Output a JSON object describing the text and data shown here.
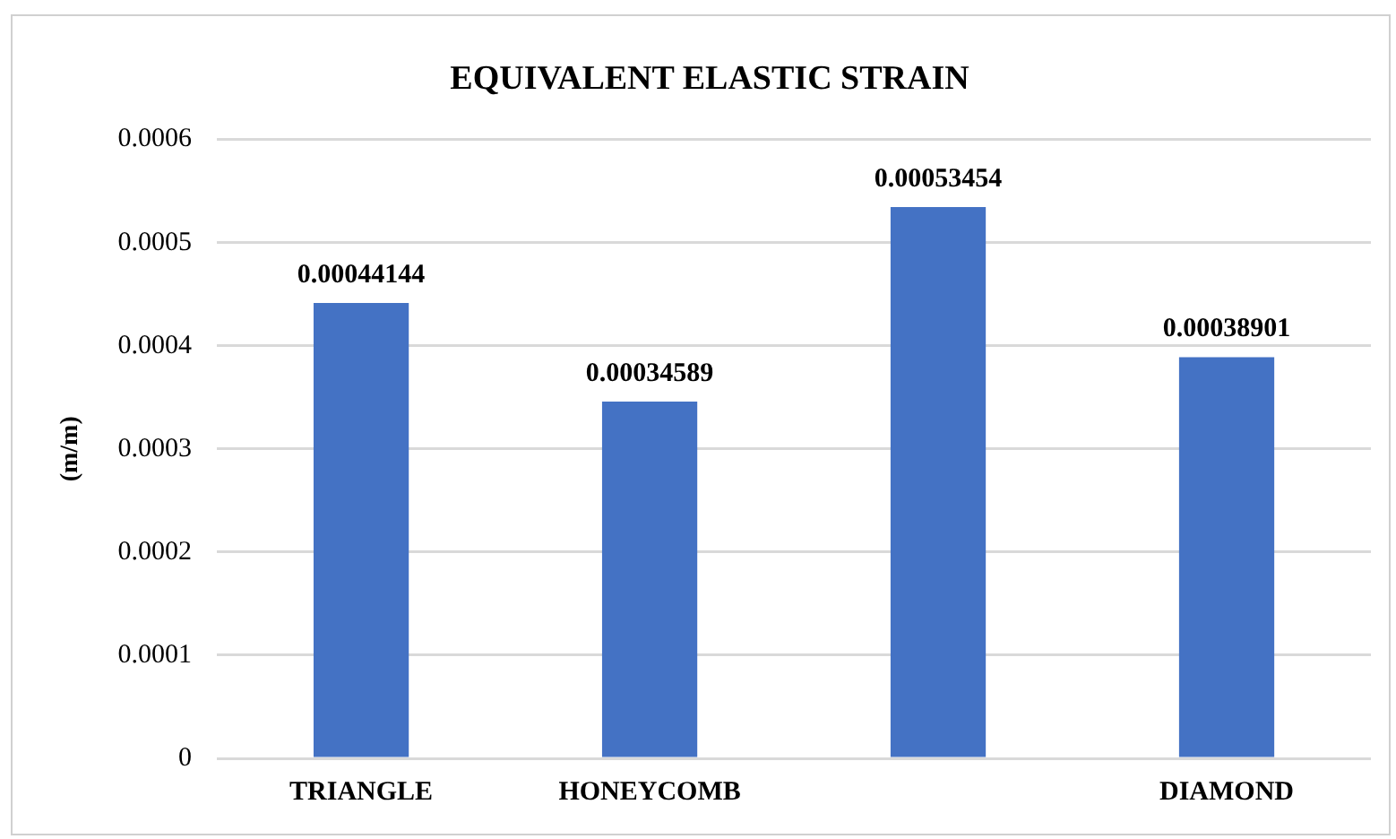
{
  "chart_data": {
    "type": "bar",
    "title": "EQUIVALENT ELASTIC STRAIN",
    "ylabel": "(m/m)",
    "categories": [
      "TRIANGLE",
      "HONEYCOMB",
      null,
      "DIAMOND"
    ],
    "values": [
      0.00044144,
      0.00034589,
      0.00053454,
      0.00038901
    ],
    "color": "#4472c4",
    "ylim": [
      0,
      0.0006
    ],
    "yticks": [
      0,
      0.0001,
      0.0002,
      0.0003,
      0.0004,
      0.0005,
      0.0006
    ],
    "grid": "y",
    "data_labels": true,
    "legend": false
  }
}
